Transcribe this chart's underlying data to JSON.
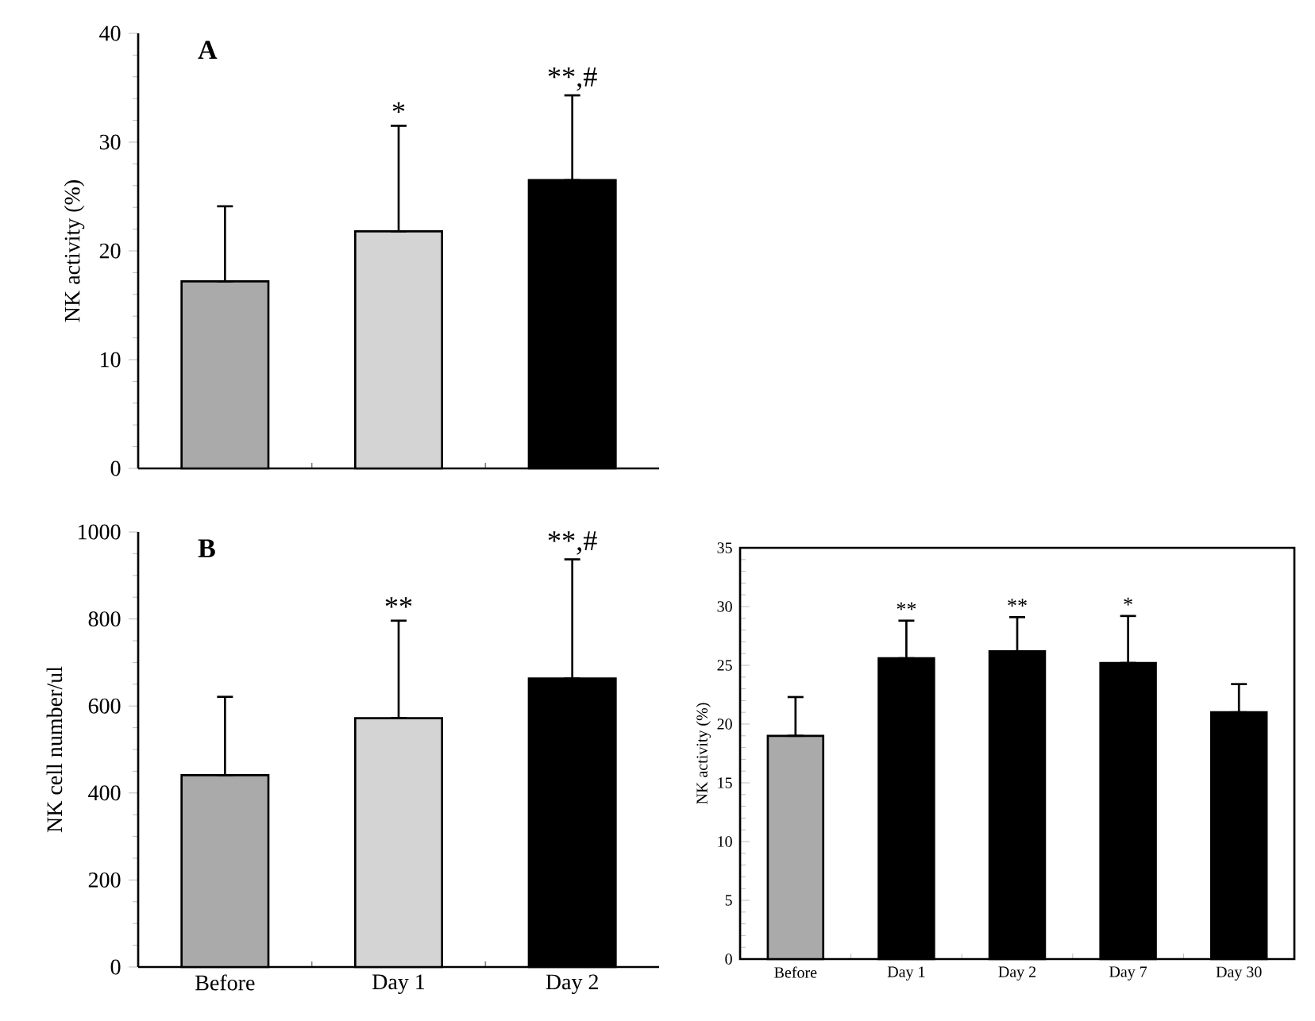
{
  "chart_data": [
    {
      "type": "bar",
      "title": "A",
      "ylabel": "NK activity (%)",
      "categories": [
        "Before",
        "Day 1",
        "Day 2"
      ],
      "values": [
        17.2,
        21.8,
        26.5
      ],
      "errors": [
        [
          17.2,
          24.1
        ],
        [
          21.8,
          31.5
        ],
        [
          26.5,
          34.3
        ]
      ],
      "colors": [
        "#aaaaaa",
        "#d4d4d4",
        "#000000"
      ],
      "ylim": [
        0,
        40
      ],
      "yticks": [
        0,
        10,
        20,
        30,
        40
      ],
      "tick_labels": "y",
      "annotations": [
        {
          "text": "*",
          "x": "Day 1",
          "y": 31.5
        },
        {
          "text": "**,#",
          "x": "Day 2",
          "y": 34.3
        }
      ]
    },
    {
      "type": "bar",
      "title": "B",
      "ylabel": "NK cell number/ul",
      "categories": [
        "Before",
        "Day 1",
        "Day 2"
      ],
      "values": [
        441,
        572,
        663
      ],
      "errors": [
        [
          441,
          621
        ],
        [
          572,
          796
        ],
        [
          663,
          937
        ]
      ],
      "colors": [
        "#aaaaaa",
        "#d4d4d4",
        "#000000"
      ],
      "ylim": [
        0,
        1000
      ],
      "yticks": [
        0,
        200,
        400,
        600,
        800,
        1000
      ],
      "annotations": [
        {
          "text": "**",
          "x": "Day 1",
          "y": 796
        },
        {
          "text": "**,#",
          "x": "Day 2",
          "y": 937
        }
      ]
    },
    {
      "type": "bar",
      "ylabel": "NK activity (%)",
      "categories": [
        "Before",
        "Day 1",
        "Day 2",
        "Day 7",
        "Day 30"
      ],
      "values": [
        19.0,
        25.6,
        26.2,
        25.2,
        21.0
      ],
      "errors": [
        [
          19.0,
          22.3
        ],
        [
          25.6,
          28.8
        ],
        [
          26.2,
          29.1
        ],
        [
          25.2,
          29.2
        ],
        [
          21.0,
          23.4
        ]
      ],
      "colors": [
        "#aaaaaa",
        "#000000",
        "#000000",
        "#000000",
        "#000000"
      ],
      "ylim": [
        0,
        35
      ],
      "yticks": [
        0,
        5,
        10,
        15,
        20,
        25,
        30,
        35
      ],
      "annotations": [
        {
          "text": "**",
          "x": "Day 1",
          "y": 28.8
        },
        {
          "text": "**",
          "x": "Day 2",
          "y": 29.1
        },
        {
          "text": "*",
          "x": "Day 7",
          "y": 29.2
        }
      ]
    }
  ]
}
